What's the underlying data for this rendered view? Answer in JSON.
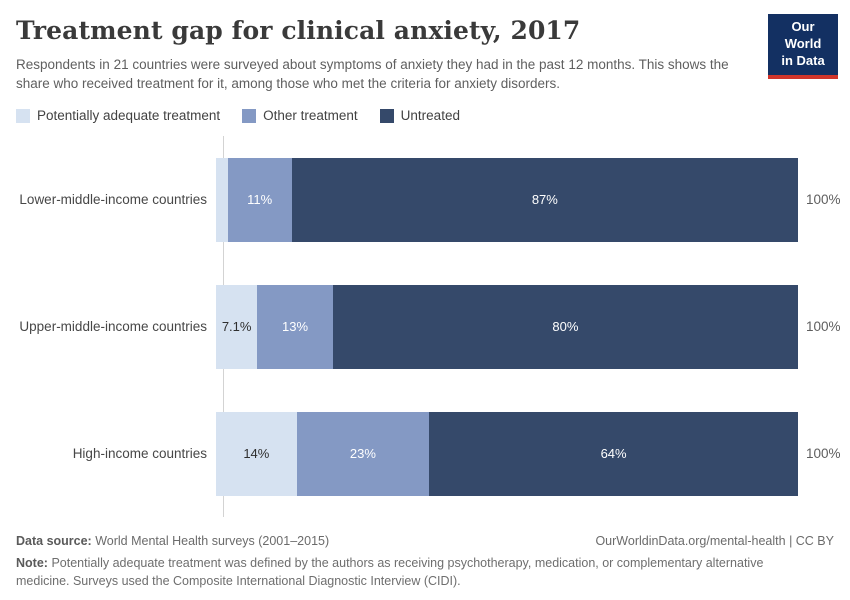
{
  "header": {
    "title": "Treatment gap for clinical anxiety, 2017",
    "subtitle": "Respondents in 21 countries were surveyed about symptoms of anxiety they had in the past 12 months. This shows the share who received treatment for it, among those who met the criteria for anxiety disorders.",
    "logo": {
      "line1": "Our World",
      "line2": "in Data",
      "bg_color": "#133062",
      "accent_color": "#d1352b"
    }
  },
  "legend": [
    {
      "label": "Potentially adequate treatment",
      "color": "#d6e2f1"
    },
    {
      "label": "Other treatment",
      "color": "#8499c4"
    },
    {
      "label": "Untreated",
      "color": "#35496a"
    }
  ],
  "chart_data": {
    "type": "bar",
    "orientation": "horizontal-stacked",
    "xlim": [
      0,
      100
    ],
    "unit": "%",
    "grid": false,
    "legend_position": "top",
    "categories": [
      "Lower-middle-income countries",
      "Upper-middle-income countries",
      "High-income countries"
    ],
    "series": [
      {
        "name": "Potentially adequate treatment",
        "color": "#d6e2f1",
        "label_color": "#2f2f2f",
        "values": [
          2,
          7.1,
          14
        ],
        "labels": [
          "",
          "7.1%",
          "14%"
        ]
      },
      {
        "name": "Other treatment",
        "color": "#8499c4",
        "label_color": "#ffffff",
        "values": [
          11,
          13,
          23
        ],
        "labels": [
          "11%",
          "13%",
          "23%"
        ]
      },
      {
        "name": "Untreated",
        "color": "#35496a",
        "label_color": "#ffffff",
        "values": [
          87,
          80,
          64
        ],
        "labels": [
          "87%",
          "80%",
          "64%"
        ]
      }
    ],
    "totals": [
      "100%",
      "100%",
      "100%"
    ]
  },
  "footer": {
    "source_label": "Data source:",
    "source_text": "World Mental Health surveys (2001–2015)",
    "link": "OurWorldinData.org/mental-health | CC BY",
    "note_label": "Note:",
    "note_text": "Potentially adequate treatment was defined by the authors as receiving psychotherapy, medication, or complementary alternative medicine. Surveys used the Composite International Diagnostic Interview (CIDI)."
  }
}
